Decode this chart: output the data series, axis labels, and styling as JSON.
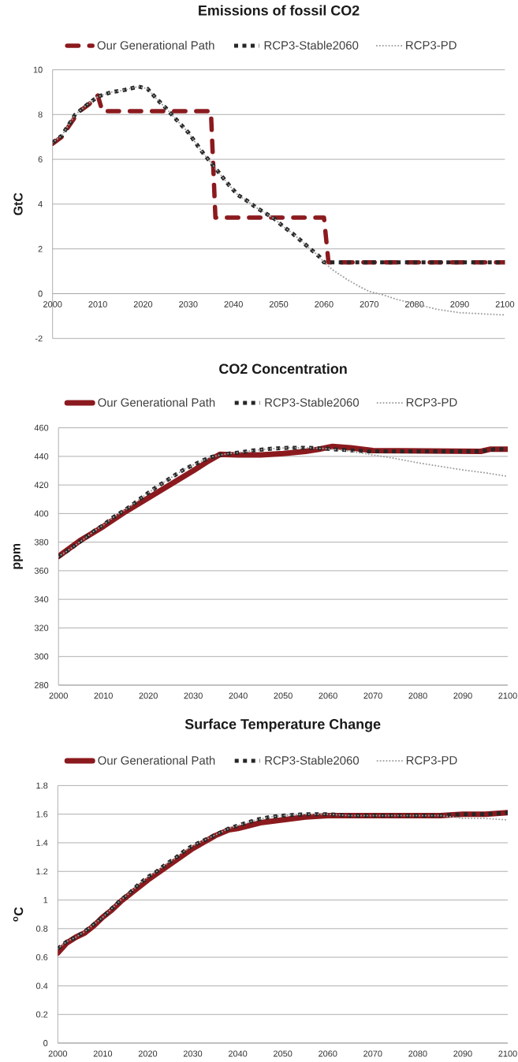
{
  "chart_data": [
    {
      "type": "line",
      "title": "Emissions of fossil CO2",
      "ylabel": "GtC",
      "xlim": [
        2000,
        2100
      ],
      "xticks": [
        2000,
        2010,
        2020,
        2030,
        2040,
        2050,
        2060,
        2070,
        2080,
        2090,
        2100
      ],
      "ylim": [
        -2,
        10
      ],
      "yticks": [
        -2,
        0,
        2,
        4,
        6,
        8,
        10
      ],
      "grid": "y",
      "legend": "top",
      "series": [
        {
          "name": "Our Generational Path",
          "color": "#8b1a1e",
          "line_style": "dashed",
          "x": [
            2000,
            2002,
            2003,
            2005,
            2006,
            2008,
            2010,
            2011,
            2035,
            2036,
            2060,
            2061,
            2100
          ],
          "values": [
            6.7,
            7.0,
            7.3,
            7.9,
            8.15,
            8.45,
            8.85,
            8.15,
            8.15,
            3.4,
            3.4,
            1.4,
            1.4
          ]
        },
        {
          "name": "RCP3-Stable2060",
          "color": "#262626",
          "line_style": "dotted",
          "x": [
            2000,
            2002,
            2005,
            2008,
            2010,
            2013,
            2016,
            2019,
            2021,
            2023,
            2025,
            2027,
            2030,
            2033,
            2036,
            2039,
            2041,
            2043,
            2045,
            2047,
            2049,
            2051,
            2053,
            2055,
            2057,
            2059,
            2060,
            2100
          ],
          "values": [
            6.75,
            7.05,
            8.0,
            8.5,
            8.8,
            9.0,
            9.1,
            9.25,
            9.15,
            8.7,
            8.3,
            7.85,
            7.2,
            6.35,
            5.6,
            4.85,
            4.4,
            4.15,
            3.85,
            3.6,
            3.35,
            3.0,
            2.7,
            2.35,
            2.0,
            1.65,
            1.4,
            1.4
          ]
        },
        {
          "name": "RCP3-PD",
          "color": "#a0a0a0",
          "line_style": "dotted",
          "x": [
            2000,
            2002,
            2005,
            2008,
            2010,
            2013,
            2016,
            2019,
            2021,
            2023,
            2025,
            2027,
            2030,
            2033,
            2036,
            2039,
            2041,
            2043,
            2045,
            2047,
            2049,
            2051,
            2053,
            2055,
            2057,
            2059,
            2060,
            2062,
            2065,
            2068,
            2070,
            2073,
            2076,
            2080,
            2085,
            2090,
            2095,
            2100
          ],
          "values": [
            6.75,
            7.05,
            8.0,
            8.5,
            8.8,
            9.0,
            9.1,
            9.25,
            9.15,
            8.7,
            8.3,
            7.85,
            7.2,
            6.35,
            5.6,
            4.85,
            4.4,
            4.15,
            3.85,
            3.6,
            3.35,
            3.0,
            2.7,
            2.35,
            2.0,
            1.65,
            1.4,
            1.05,
            0.65,
            0.3,
            0.1,
            -0.05,
            -0.25,
            -0.45,
            -0.7,
            -0.85,
            -0.9,
            -0.95
          ]
        }
      ]
    },
    {
      "type": "line",
      "title": "CO2 Concentration",
      "ylabel": "ppm",
      "xlim": [
        2000,
        2100
      ],
      "xticks": [
        2000,
        2010,
        2020,
        2030,
        2040,
        2050,
        2060,
        2070,
        2080,
        2090,
        2100
      ],
      "ylim": [
        280,
        460
      ],
      "yticks": [
        280,
        300,
        320,
        340,
        360,
        380,
        400,
        420,
        440,
        460
      ],
      "grid": "y",
      "legend": "top",
      "series": [
        {
          "name": "Our Generational Path",
          "color": "#8b1a1e",
          "line_style": "solid",
          "x": [
            2000,
            2005,
            2010,
            2015,
            2020,
            2025,
            2030,
            2033,
            2036,
            2040,
            2045,
            2050,
            2055,
            2058,
            2061,
            2065,
            2070,
            2094,
            2096,
            2100
          ],
          "values": [
            370,
            381.5,
            391,
            401.5,
            411,
            420.5,
            430,
            436,
            441.5,
            441,
            441,
            442,
            443.5,
            445,
            447,
            446,
            444,
            443.5,
            445,
            445
          ]
        },
        {
          "name": "RCP3-Stable2060",
          "color": "#262626",
          "line_style": "dotted",
          "x": [
            2000,
            2002,
            2004,
            2006,
            2008,
            2010,
            2012,
            2014,
            2016,
            2018,
            2020,
            2022,
            2024,
            2026,
            2028,
            2030,
            2032,
            2034,
            2036,
            2038,
            2041,
            2043,
            2046,
            2048,
            2051,
            2056,
            2059,
            2061,
            2064,
            2066,
            2069,
            2094,
            2097,
            2100
          ],
          "values": [
            370,
            374,
            378.5,
            383,
            388,
            392,
            397,
            401,
            405,
            410,
            414.5,
            419,
            423,
            427,
            431,
            434,
            437,
            439.5,
            441,
            442,
            443,
            444,
            445,
            445.5,
            446,
            446,
            445.5,
            445,
            444.5,
            444,
            443.5,
            443.5,
            445,
            445
          ]
        },
        {
          "name": "RCP3-PD",
          "color": "#a0a0a0",
          "line_style": "dotted",
          "x": [
            2000,
            2002,
            2004,
            2006,
            2008,
            2010,
            2012,
            2014,
            2016,
            2018,
            2020,
            2022,
            2024,
            2026,
            2028,
            2030,
            2032,
            2034,
            2036,
            2038,
            2041,
            2043,
            2046,
            2048,
            2051,
            2056,
            2059,
            2061,
            2064,
            2067,
            2070,
            2075,
            2080,
            2085,
            2090,
            2095,
            2100
          ],
          "values": [
            370,
            374,
            378.5,
            383,
            388,
            392,
            397,
            401,
            405,
            410,
            414.5,
            419,
            423,
            427,
            431,
            434,
            437,
            439.5,
            441,
            442,
            443,
            444,
            445,
            445.5,
            446,
            446,
            445.5,
            445,
            444,
            442.5,
            441,
            438.5,
            435.5,
            433,
            430.5,
            428.5,
            426
          ]
        }
      ]
    },
    {
      "type": "line",
      "title": "Surface Temperature Change",
      "ylabel": "$^{o}$C",
      "xlim": [
        2000,
        2100
      ],
      "xticks": [
        2000,
        2010,
        2020,
        2030,
        2040,
        2050,
        2060,
        2070,
        2080,
        2090,
        2100
      ],
      "ylim": [
        0,
        1.8
      ],
      "yticks": [
        0,
        0.2,
        0.4,
        0.6,
        0.8,
        1,
        1.2,
        1.4,
        1.6,
        1.8
      ],
      "grid": "y",
      "legend": "top",
      "series": [
        {
          "name": "Our Generational Path",
          "color": "#8b1a1e",
          "line_style": "solid",
          "x": [
            2000,
            2002,
            2004,
            2006,
            2008,
            2010,
            2012,
            2014,
            2016,
            2018,
            2020,
            2025,
            2030,
            2035,
            2038,
            2040,
            2045,
            2050,
            2055,
            2060,
            2085,
            2090,
            2095,
            2100
          ],
          "values": [
            0.63,
            0.7,
            0.74,
            0.77,
            0.82,
            0.88,
            0.93,
            0.99,
            1.04,
            1.09,
            1.14,
            1.25,
            1.36,
            1.45,
            1.49,
            1.5,
            1.54,
            1.56,
            1.58,
            1.59,
            1.59,
            1.6,
            1.6,
            1.61
          ]
        },
        {
          "name": "RCP3-Stable2060",
          "color": "#262626",
          "line_style": "dotted",
          "x": [
            2000,
            2002,
            2004,
            2006,
            2008,
            2010,
            2012,
            2014,
            2016,
            2018,
            2020,
            2022,
            2024,
            2026,
            2028,
            2030,
            2032,
            2034,
            2036,
            2038,
            2040,
            2042,
            2044,
            2047,
            2050,
            2055,
            2060,
            2065,
            2085,
            2090,
            2095,
            2100
          ],
          "values": [
            0.66,
            0.71,
            0.74,
            0.78,
            0.83,
            0.88,
            0.94,
            1,
            1.05,
            1.11,
            1.16,
            1.2,
            1.25,
            1.29,
            1.34,
            1.38,
            1.41,
            1.44,
            1.47,
            1.5,
            1.52,
            1.54,
            1.56,
            1.58,
            1.59,
            1.6,
            1.6,
            1.59,
            1.59,
            1.6,
            1.6,
            1.61
          ]
        },
        {
          "name": "RCP3-PD",
          "color": "#a0a0a0",
          "line_style": "dotted",
          "x": [
            2000,
            2002,
            2004,
            2006,
            2008,
            2010,
            2012,
            2014,
            2016,
            2018,
            2020,
            2022,
            2024,
            2026,
            2028,
            2030,
            2032,
            2034,
            2036,
            2038,
            2040,
            2042,
            2044,
            2047,
            2050,
            2055,
            2060,
            2065,
            2085,
            2088,
            2090,
            2095,
            2100
          ],
          "values": [
            0.66,
            0.71,
            0.74,
            0.78,
            0.83,
            0.88,
            0.94,
            1,
            1.05,
            1.11,
            1.16,
            1.2,
            1.25,
            1.29,
            1.34,
            1.38,
            1.41,
            1.44,
            1.47,
            1.5,
            1.52,
            1.54,
            1.56,
            1.58,
            1.59,
            1.6,
            1.6,
            1.59,
            1.59,
            1.58,
            1.57,
            1.57,
            1.56
          ]
        }
      ]
    }
  ]
}
